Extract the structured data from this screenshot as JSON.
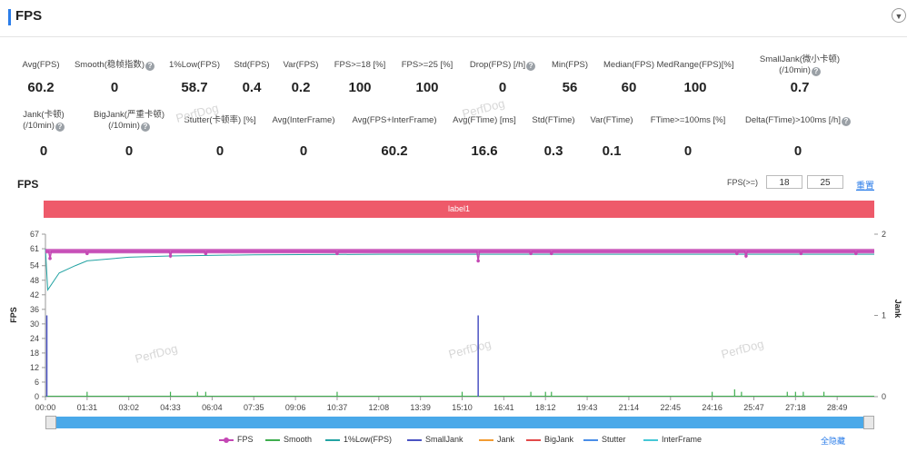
{
  "header": {
    "title": "FPS"
  },
  "metrics_row1": [
    {
      "label": "Avg(FPS)",
      "value": "60.2",
      "help": false
    },
    {
      "label": "Smooth(稳帧指数)",
      "value": "0",
      "help": true
    },
    {
      "label": "1%Low(FPS)",
      "value": "58.7",
      "help": false
    },
    {
      "label": "Std(FPS)",
      "value": "0.4",
      "help": false
    },
    {
      "label": "Var(FPS)",
      "value": "0.2",
      "help": false
    },
    {
      "label": "FPS>=18 [%]",
      "value": "100",
      "help": false
    },
    {
      "label": "FPS>=25 [%]",
      "value": "100",
      "help": false
    },
    {
      "label": "Drop(FPS) [/h]",
      "value": "0",
      "help": true
    },
    {
      "label": "Min(FPS)",
      "value": "56",
      "help": false
    },
    {
      "label": "Median(FPS)",
      "value": "60",
      "help": false
    },
    {
      "label": "MedRange(FPS)[%]",
      "value": "100",
      "help": false
    },
    {
      "label": "SmallJank(微小卡顿)",
      "label2": "(/10min)",
      "value": "0.7",
      "help": true
    }
  ],
  "metrics_row2": [
    {
      "label": "Jank(卡顿)",
      "label2": "(/10min)",
      "value": "0",
      "help": true
    },
    {
      "label": "BigJank(严重卡顿)",
      "label2": "(/10min)",
      "value": "0",
      "help": true
    },
    {
      "label": "Stutter(卡顿率) [%]",
      "value": "0",
      "help": false
    },
    {
      "label": "Avg(InterFrame)",
      "value": "0",
      "help": false
    },
    {
      "label": "Avg(FPS+InterFrame)",
      "value": "60.2",
      "help": false
    },
    {
      "label": "Avg(FTime) [ms]",
      "value": "16.6",
      "help": false
    },
    {
      "label": "Std(FTime)",
      "value": "0.3",
      "help": false
    },
    {
      "label": "Var(FTime)",
      "value": "0.1",
      "help": false
    },
    {
      "label": "FTime>=100ms [%]",
      "value": "0",
      "help": false
    },
    {
      "label": "Delta(FTime)>100ms [/h]",
      "value": "0",
      "help": true
    }
  ],
  "chart_controls": {
    "title": "FPS",
    "threshold_label": "FPS(>=)",
    "threshold1": "18",
    "threshold2": "25",
    "reset_label": "重置",
    "band_label": "label1",
    "hide_all_label": "全隐藏"
  },
  "watermark": "PerfDog",
  "chart_data": {
    "type": "line",
    "ylabel": "FPS",
    "y2label": "Jank",
    "ylim": [
      0,
      67
    ],
    "yticks": [
      0,
      6,
      12,
      18,
      24,
      30,
      36,
      42,
      48,
      54,
      61,
      67
    ],
    "y2lim": [
      0,
      2
    ],
    "y2ticks": [
      0,
      1,
      2
    ],
    "xlim": [
      "00:00",
      "30:10"
    ],
    "xticks": [
      "00:00",
      "01:31",
      "03:02",
      "04:33",
      "06:04",
      "07:35",
      "09:06",
      "10:37",
      "12:08",
      "13:39",
      "15:10",
      "16:41",
      "18:12",
      "19:43",
      "21:14",
      "22:45",
      "24:16",
      "25:47",
      "27:18",
      "28:49"
    ],
    "series": [
      {
        "name": "FPS",
        "color": "#c447b4",
        "base": 60,
        "dips": [
          {
            "t": "00:10",
            "v": 57
          },
          {
            "t": "01:31",
            "v": 59
          },
          {
            "t": "04:33",
            "v": 58
          },
          {
            "t": "05:50",
            "v": 59
          },
          {
            "t": "10:37",
            "v": 59
          },
          {
            "t": "15:45",
            "v": 56
          },
          {
            "t": "17:40",
            "v": 59
          },
          {
            "t": "18:25",
            "v": 59
          },
          {
            "t": "25:10",
            "v": 59
          },
          {
            "t": "25:30",
            "v": 58
          },
          {
            "t": "27:30",
            "v": 59
          },
          {
            "t": "29:30",
            "v": 59
          }
        ]
      },
      {
        "name": "Smooth",
        "color": "#3fae4f",
        "base": 0,
        "spikes": [
          {
            "t": "01:31",
            "v": 2
          },
          {
            "t": "04:33",
            "v": 2
          },
          {
            "t": "05:32",
            "v": 2
          },
          {
            "t": "05:50",
            "v": 2
          },
          {
            "t": "10:37",
            "v": 2
          },
          {
            "t": "15:10",
            "v": 2
          },
          {
            "t": "17:40",
            "v": 2
          },
          {
            "t": "18:12",
            "v": 2
          },
          {
            "t": "18:25",
            "v": 2
          },
          {
            "t": "24:16",
            "v": 2
          },
          {
            "t": "25:05",
            "v": 3
          },
          {
            "t": "25:20",
            "v": 2
          },
          {
            "t": "27:00",
            "v": 2
          },
          {
            "t": "27:18",
            "v": 2
          },
          {
            "t": "27:35",
            "v": 2
          },
          {
            "t": "28:20",
            "v": 2
          }
        ]
      },
      {
        "name": "1%Low(FPS)",
        "color": "#23a3a3",
        "points": [
          {
            "t": "00:00",
            "v": 61
          },
          {
            "t": "00:05",
            "v": 44
          },
          {
            "t": "00:30",
            "v": 51
          },
          {
            "t": "01:05",
            "v": 54
          },
          {
            "t": "01:31",
            "v": 56
          },
          {
            "t": "03:02",
            "v": 57.5
          },
          {
            "t": "04:33",
            "v": 58
          },
          {
            "t": "07:35",
            "v": 58.5
          },
          {
            "t": "12:08",
            "v": 58.7
          },
          {
            "t": "30:10",
            "v": 58.7
          }
        ]
      },
      {
        "name": "SmallJank",
        "color": "#4b53c3",
        "axis": "right",
        "spikes": [
          {
            "t": "00:03",
            "v": 1
          },
          {
            "t": "15:45",
            "v": 1
          }
        ]
      },
      {
        "name": "Jank",
        "color": "#f39c32",
        "axis": "right",
        "values": []
      },
      {
        "name": "BigJank",
        "color": "#e24a4a",
        "axis": "right",
        "values": []
      },
      {
        "name": "Stutter",
        "color": "#4a8ee8",
        "values": []
      },
      {
        "name": "InterFrame",
        "color": "#46c7d6",
        "values": []
      }
    ]
  }
}
